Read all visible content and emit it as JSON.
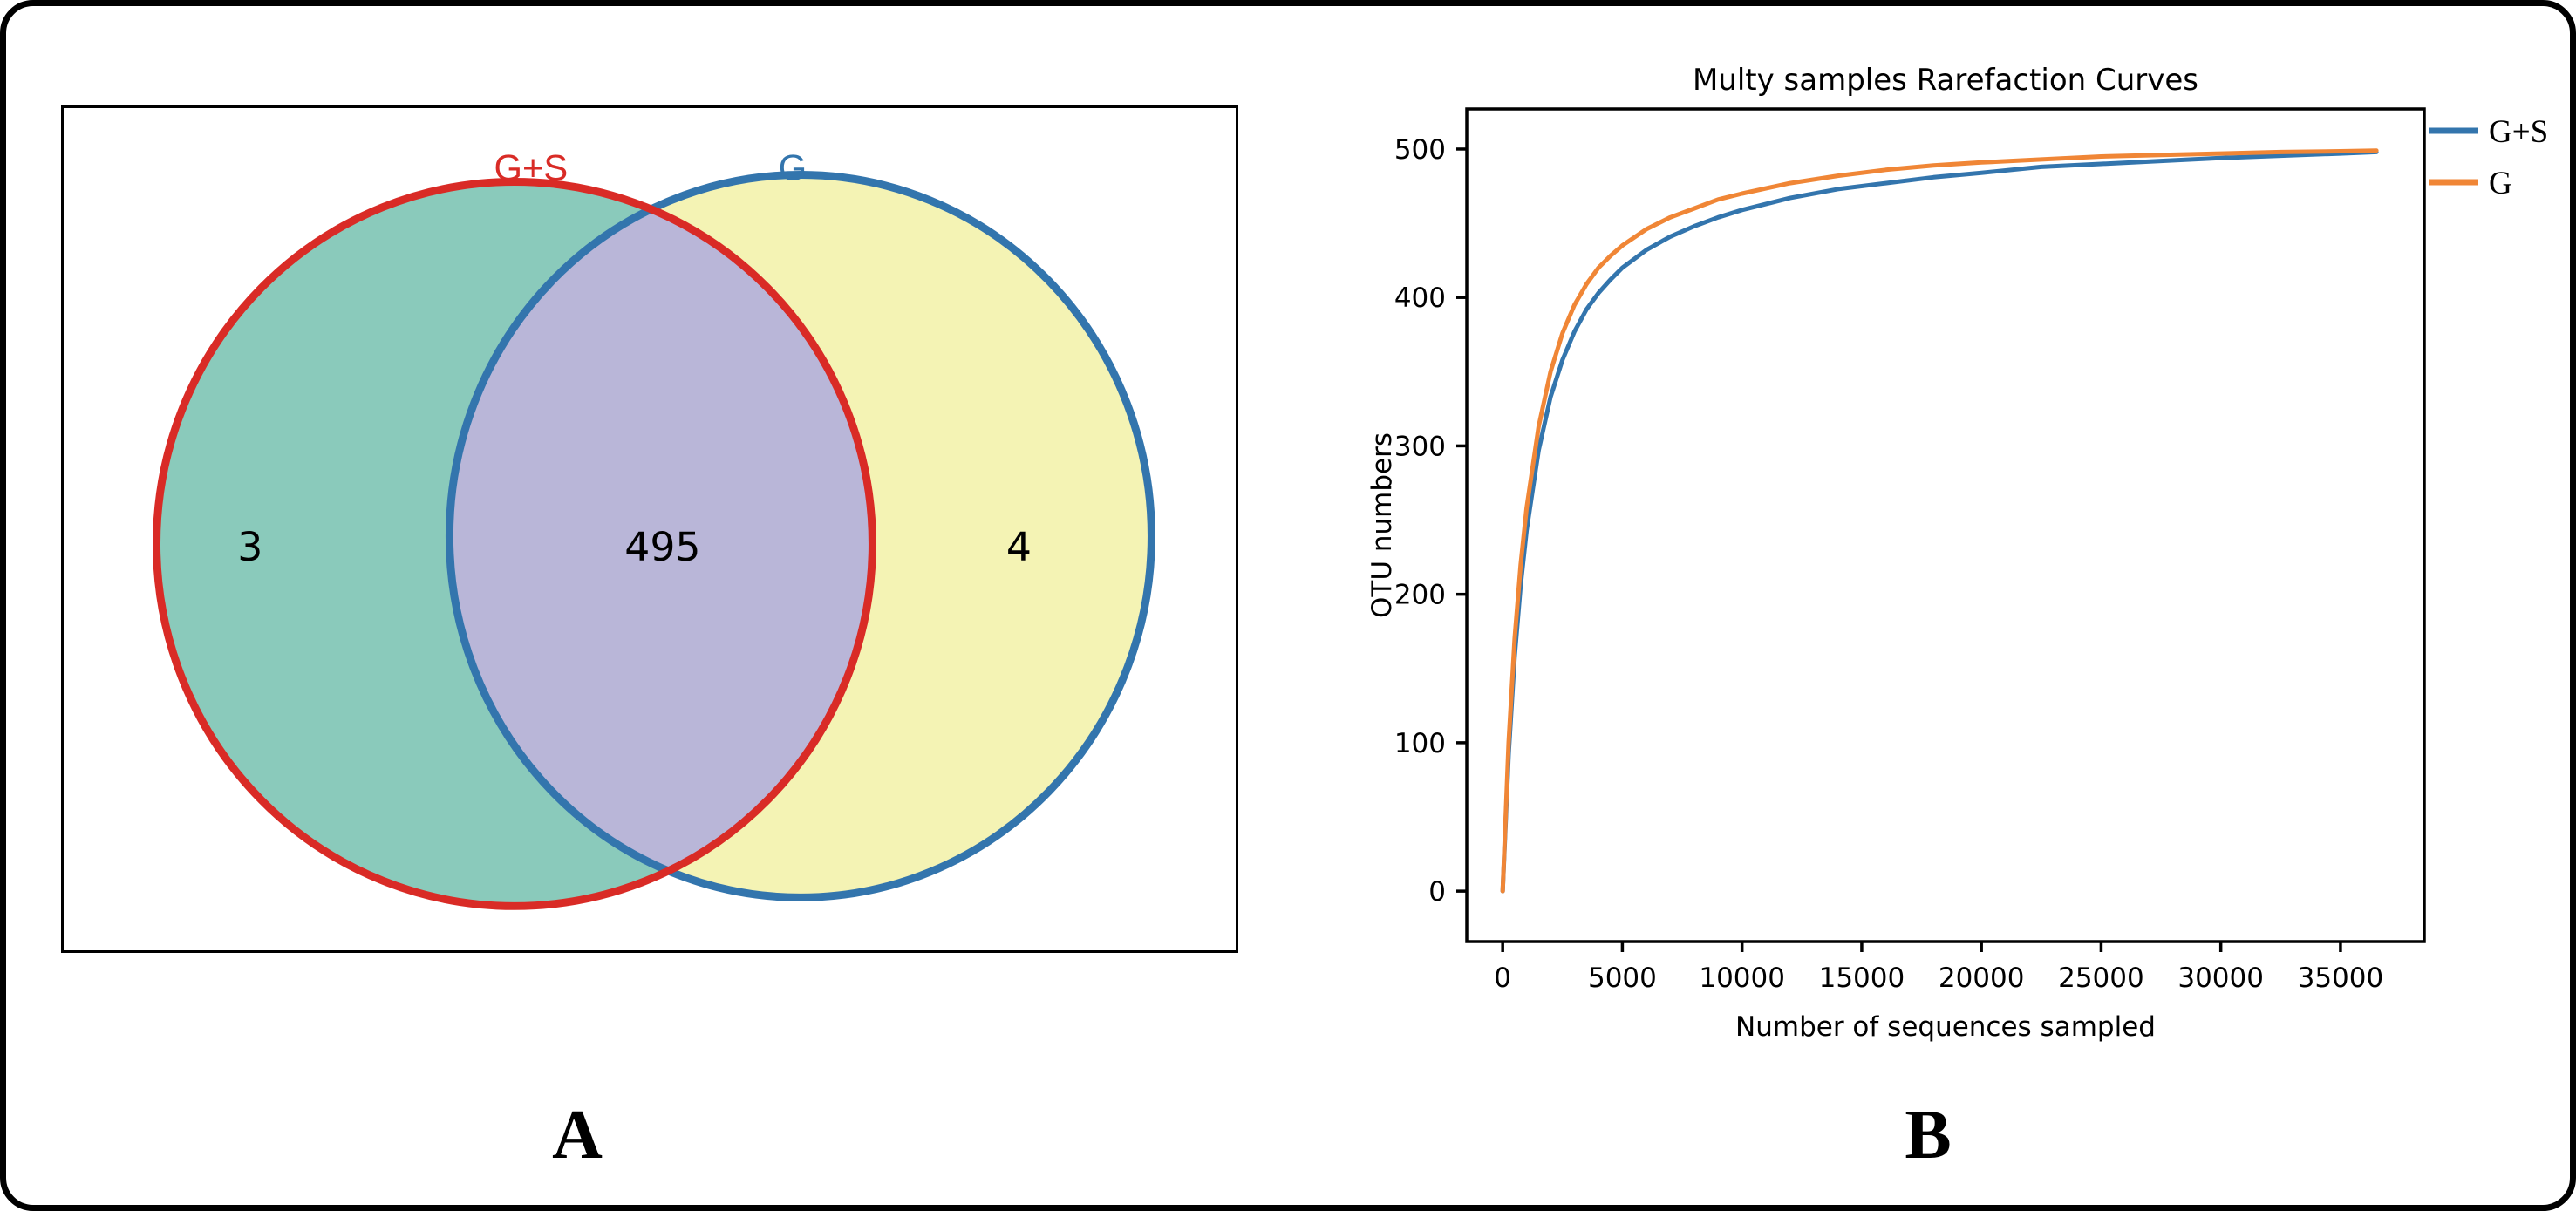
{
  "figure": {
    "panel_a_label": "A",
    "panel_b_label": "B",
    "border_color": "#000000",
    "background": "#ffffff"
  },
  "venn": {
    "left_set_label": "G+S",
    "right_set_label": "G",
    "left_only_count": "3",
    "overlap_count": "495",
    "right_only_count": "4",
    "colors": {
      "left_fill": "#8ACABB",
      "right_fill": "#F4F3B4",
      "overlap_fill": "#B9B6D8",
      "left_stroke": "#D92B26",
      "right_stroke": "#3375AD",
      "count_text": "#000000"
    }
  },
  "chart_data": {
    "type": "line",
    "title": "Multy samples Rarefaction Curves",
    "xlabel": "Number of sequences sampled",
    "ylabel": "OTU numbers",
    "xlim": [
      -1500,
      38500
    ],
    "ylim": [
      -34,
      527
    ],
    "xticks": [
      0,
      5000,
      10000,
      15000,
      20000,
      25000,
      30000,
      35000
    ],
    "yticks": [
      0,
      100,
      200,
      300,
      400,
      500
    ],
    "grid": false,
    "legend_position": "outside-top-right",
    "x": [
      0,
      250,
      500,
      750,
      1000,
      1500,
      2000,
      2500,
      3000,
      3500,
      4000,
      4500,
      5000,
      6000,
      7000,
      8000,
      9000,
      10000,
      12000,
      14000,
      16000,
      18000,
      20000,
      22500,
      25000,
      27500,
      30000,
      32500,
      35000,
      36500
    ],
    "series": [
      {
        "name": "G+S",
        "color": "#3375AD",
        "values": [
          0,
          92,
          158,
          206,
          243,
          297,
          333,
          358,
          377,
          392,
          403,
          412,
          420,
          432,
          441,
          448,
          454,
          459,
          467,
          473,
          477,
          481,
          484,
          488,
          490,
          492,
          494,
          495.5,
          497,
          498
        ]
      },
      {
        "name": "G",
        "color": "#F08636",
        "values": [
          0,
          100,
          170,
          220,
          258,
          313,
          350,
          376,
          395,
          409,
          420,
          428,
          435,
          446,
          454,
          460,
          466,
          470,
          477,
          482,
          486,
          489,
          491,
          493,
          495,
          496,
          497,
          498,
          498.5,
          499
        ]
      }
    ]
  }
}
